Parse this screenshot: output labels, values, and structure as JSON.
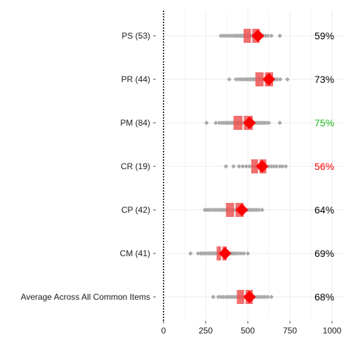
{
  "chart_data": {
    "type": "scatter",
    "xlim": [
      0,
      1000
    ],
    "x_ticks": [
      "0",
      "250",
      "500",
      "750",
      "1000"
    ],
    "grid": true,
    "reference_line_x": 0,
    "colors": {
      "points": "#aaaaaa",
      "interval_box": "#ee5555",
      "mean_marker": "#ff0000",
      "pct_default": "#000000",
      "pct_high": "#1fba1f",
      "pct_low": "#ff0000",
      "grid": "#ebebeb",
      "tick": "#555555"
    },
    "rows": [
      {
        "label": "PS (53)",
        "percent": "59%",
        "percent_color": "default",
        "mean": 560,
        "box": [
          475,
          570
        ],
        "points": [
          340,
          352,
          365,
          378,
          390,
          402,
          414,
          425,
          435,
          445,
          455,
          463,
          470,
          478,
          486,
          494,
          502,
          510,
          518,
          525,
          532,
          540,
          548,
          555,
          562,
          570,
          580,
          592,
          605,
          620,
          640,
          690
        ]
      },
      {
        "label": "PR (44)",
        "percent": "73%",
        "percent_color": "default",
        "mean": 625,
        "box": [
          545,
          650
        ],
        "points": [
          390,
          430,
          445,
          458,
          470,
          482,
          494,
          505,
          515,
          525,
          534,
          543,
          552,
          560,
          568,
          576,
          584,
          592,
          600,
          608,
          616,
          624,
          632,
          640,
          650,
          662,
          676,
          692,
          735
        ]
      },
      {
        "label": "PM (84)",
        "percent": "75%",
        "percent_color": "high",
        "mean": 510,
        "box": [
          415,
          530
        ],
        "points": [
          255,
          310,
          330,
          345,
          358,
          370,
          380,
          390,
          400,
          410,
          420,
          430,
          440,
          450,
          460,
          470,
          480,
          490,
          500,
          510,
          520,
          530,
          540,
          550,
          560,
          570,
          580,
          590,
          600,
          612,
          625,
          690
        ]
      },
      {
        "label": "CR (19)",
        "percent": "56%",
        "percent_color": "low",
        "mean": 585,
        "box": [
          520,
          610
        ],
        "points": [
          370,
          415,
          448,
          470,
          490,
          510,
          530,
          548,
          565,
          580,
          595,
          610,
          625,
          640,
          655,
          670,
          690,
          705,
          725
        ]
      },
      {
        "label": "CP (42)",
        "percent": "64%",
        "percent_color": "default",
        "mean": 465,
        "box": [
          370,
          475
        ],
        "points": [
          245,
          258,
          270,
          283,
          296,
          308,
          320,
          332,
          344,
          355,
          366,
          377,
          388,
          398,
          408,
          418,
          428,
          438,
          448,
          458,
          468,
          478,
          488,
          498,
          508,
          518,
          528,
          540,
          553,
          567,
          585
        ]
      },
      {
        "label": "CM (41)",
        "percent": "69%",
        "percent_color": "default",
        "mean": 365,
        "box": [
          315,
          375
        ],
        "points": [
          160,
          205,
          220,
          232,
          244,
          256,
          268,
          280,
          290,
          300,
          310,
          320,
          330,
          340,
          350,
          360,
          370,
          380,
          390,
          400,
          410,
          420,
          432,
          445,
          460,
          476,
          500
        ]
      },
      {
        "label": "Average Across All Common Items",
        "percent": "68%",
        "percent_color": "default",
        "mean": 510,
        "box": [
          435,
          530
        ],
        "points": [
          295,
          325,
          340,
          355,
          370,
          383,
          395,
          407,
          418,
          430,
          442,
          454,
          466,
          478,
          490,
          502,
          514,
          526,
          538,
          550,
          562,
          575,
          588,
          602,
          618,
          640
        ]
      }
    ]
  }
}
